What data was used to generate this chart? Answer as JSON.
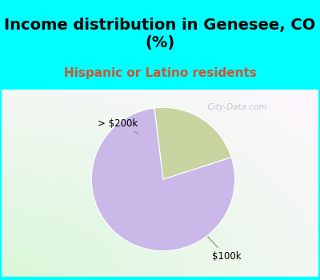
{
  "title": "Income distribution in Genesee, CO\n(%)",
  "subtitle": "Hispanic or Latino residents",
  "slices": [
    {
      "label": "$100k",
      "value": 78,
      "color": "#c9b8e8"
    },
    {
      "label": "> $200k",
      "value": 22,
      "color": "#c8d4a0"
    }
  ],
  "title_fontsize": 14,
  "subtitle_fontsize": 11,
  "subtitle_color": "#cc5533",
  "bg_color": "#00ffff",
  "chart_bg": "#f0f8f0",
  "watermark": "  City-Data.com",
  "startangle": 97
}
